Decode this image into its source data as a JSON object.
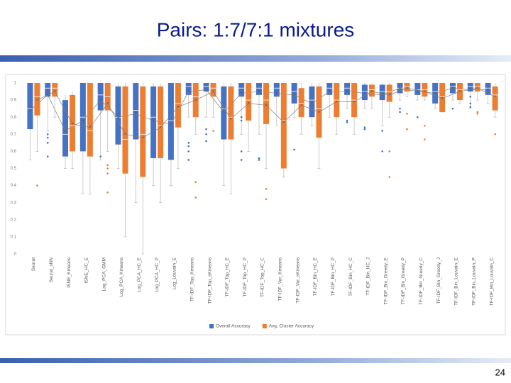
{
  "slide": {
    "title": "Pairs: 1:7/7:1 mixtures",
    "page_number": "24"
  },
  "chart_data": {
    "type": "box",
    "categories": [
      "Seurat",
      "Seurat_sNN",
      "tSNE_Kmeans",
      "tSNE_HC_E",
      "Log_PCA_GMM",
      "Log_PCA_Kmeans",
      "Log_PCA_HC_E",
      "Log_PCA_HC_P",
      "Log_Louvain_E",
      "TF-IDF_Top_Kmeans",
      "TF-IDF_Top_sKmeans",
      "TF-IDF_Top_HC_E",
      "TF-IDF_Top_HC_P",
      "TF-IDF_Top_HC_C",
      "TF-IDF_Var_Kmeans",
      "TF-IDF_Var_sKmeans",
      "TF-IDF_Bin_HC_E",
      "TF-IDF_Bin_HC_P",
      "TF-IDF_Bin_HC_C",
      "TF-IDF_Bin_HC_J",
      "TF-IDF_Bin_Greedy_E",
      "TF-IDF_Bin_Greedy_P",
      "TF-IDF_Bin_Greedy_C",
      "TF-IDF_Bin_Greedy_J",
      "TF-IDF_Bin_Louvain_E",
      "TF-IDF_Bin_Louvain_P",
      "TF-IDF_Bin_Louvain_C"
    ],
    "ylim": [
      0,
      1
    ],
    "yticks": [
      0,
      0.1,
      0.2,
      0.3,
      0.4,
      0.5,
      0.6,
      0.7,
      0.8,
      0.9,
      1
    ],
    "grid": false,
    "legend": "bottom",
    "series": [
      {
        "name": "Overall Accuracy",
        "color": "#4472c4",
        "min": [
          0.55,
          0.72,
          0.5,
          0.35,
          0.55,
          0.5,
          0.3,
          0.4,
          0.4,
          0.8,
          0.8,
          0.4,
          0.7,
          0.7,
          0.75,
          0.8,
          0.75,
          0.8,
          0.85,
          0.85,
          0.75,
          0.9,
          0.9,
          0.85,
          0.9,
          0.85,
          0.88
        ],
        "q1": [
          0.73,
          0.92,
          0.57,
          0.6,
          0.84,
          0.64,
          0.67,
          0.56,
          0.55,
          0.93,
          0.95,
          0.67,
          0.92,
          0.93,
          0.92,
          0.88,
          0.8,
          0.93,
          0.93,
          0.9,
          0.9,
          0.94,
          0.93,
          0.88,
          0.94,
          0.95,
          0.93
        ],
        "median": [
          0.85,
          0.97,
          0.7,
          0.8,
          0.93,
          0.8,
          0.84,
          0.8,
          0.78,
          0.98,
          0.98,
          0.85,
          0.97,
          0.97,
          0.97,
          0.95,
          0.9,
          0.97,
          0.97,
          0.95,
          0.95,
          0.97,
          0.96,
          0.95,
          0.98,
          0.98,
          0.97
        ],
        "q3": [
          1,
          1,
          0.9,
          1,
          1,
          0.98,
          1,
          0.98,
          1,
          1,
          1,
          0.98,
          1,
          1,
          1,
          1,
          0.98,
          1,
          1,
          0.99,
          0.99,
          1,
          1,
          1,
          1,
          1,
          1
        ],
        "max": [
          1,
          1,
          0.93,
          1,
          1,
          1,
          1,
          1,
          1,
          1,
          1,
          1,
          1,
          1,
          1,
          1,
          1,
          1,
          1,
          1,
          1,
          1,
          1,
          1,
          1,
          1,
          1
        ],
        "mean": [
          0.84,
          0.93,
          0.72,
          0.78,
          0.9,
          0.8,
          0.82,
          0.78,
          0.76,
          0.95,
          0.96,
          0.83,
          0.94,
          0.95,
          0.94,
          0.93,
          0.88,
          0.95,
          0.95,
          0.94,
          0.93,
          0.97,
          0.95,
          0.94,
          0.97,
          0.96,
          0.96
        ],
        "outliers": [
          [],
          [
            0.7,
            0.68,
            0.65,
            0.57
          ],
          [],
          [],
          [
            0.57
          ],
          [],
          [],
          [],
          [],
          [
            0.65,
            0.63,
            0.6,
            0.55
          ],
          [
            0.73,
            0.7,
            0.66
          ],
          [],
          [
            0.8,
            0.78,
            0.6,
            0.55
          ],
          [
            0.56,
            0.55
          ],
          [],
          [
            0.61
          ],
          [],
          [],
          [
            0.78,
            0.77
          ],
          [
            0.74,
            0.73
          ],
          [
            0.72,
            0.6
          ],
          [
            0.85,
            0.83
          ],
          [
            0.8
          ],
          [],
          [
            0.85
          ],
          [
            0.92,
            0.88,
            0.86
          ],
          []
        ]
      },
      {
        "name": "Avg. Cluster Accuracy",
        "color": "#ed7d31",
        "min": [
          0.6,
          0.8,
          0.5,
          0.35,
          0.6,
          0.1,
          0,
          0.3,
          0.5,
          0.7,
          0.8,
          0.35,
          0.6,
          0.5,
          0.45,
          0.7,
          0.5,
          0.7,
          0.7,
          0.85,
          0.8,
          0.92,
          0.9,
          0.83,
          0.88,
          0.9,
          0.8
        ],
        "q1": [
          0.81,
          0.92,
          0.6,
          0.57,
          0.84,
          0.47,
          0.45,
          0.56,
          0.74,
          0.8,
          0.92,
          0.67,
          0.78,
          0.76,
          0.5,
          0.8,
          0.68,
          0.8,
          0.8,
          0.92,
          0.89,
          0.95,
          0.92,
          0.83,
          0.9,
          0.95,
          0.84
        ],
        "median": [
          0.92,
          0.97,
          0.75,
          0.72,
          0.92,
          0.67,
          0.7,
          0.75,
          0.88,
          0.92,
          0.97,
          0.8,
          0.9,
          0.9,
          0.78,
          0.88,
          0.85,
          0.9,
          0.9,
          0.96,
          0.95,
          0.98,
          0.96,
          0.92,
          0.96,
          0.98,
          0.93
        ],
        "q3": [
          1,
          1,
          0.93,
          1,
          1,
          0.98,
          0.98,
          0.98,
          1,
          1,
          1,
          0.98,
          1,
          1,
          1,
          0.97,
          0.98,
          1,
          1,
          0.99,
          0.99,
          1,
          1,
          1,
          1,
          1,
          0.98
        ],
        "max": [
          1,
          1,
          0.95,
          1,
          1,
          1,
          1,
          1,
          1,
          1,
          1,
          1,
          1,
          1,
          1,
          1,
          1,
          1,
          1,
          1,
          1,
          1,
          1,
          1,
          1,
          1,
          1
        ],
        "mean": [
          0.9,
          0.95,
          0.76,
          0.74,
          0.88,
          0.7,
          0.68,
          0.74,
          0.86,
          0.9,
          0.95,
          0.79,
          0.88,
          0.87,
          0.77,
          0.87,
          0.83,
          0.89,
          0.89,
          0.95,
          0.93,
          0.97,
          0.95,
          0.91,
          0.95,
          0.97,
          0.92
        ],
        "outliers": [
          [
            0.4
          ],
          [],
          [],
          [],
          [
            0.52,
            0.5,
            0.47,
            0.36
          ],
          [],
          [],
          [],
          [],
          [
            0.42,
            0.33
          ],
          [
            0.72
          ],
          [],
          [],
          [
            0.38,
            0.32
          ],
          [],
          [],
          [],
          [],
          [],
          [],
          [
            0.6,
            0.45
          ],
          [
            0.82,
            0.73
          ],
          [
            0.75,
            0.67
          ],
          [],
          [],
          [
            0.83,
            0.82
          ],
          [
            0.7
          ]
        ]
      }
    ]
  }
}
